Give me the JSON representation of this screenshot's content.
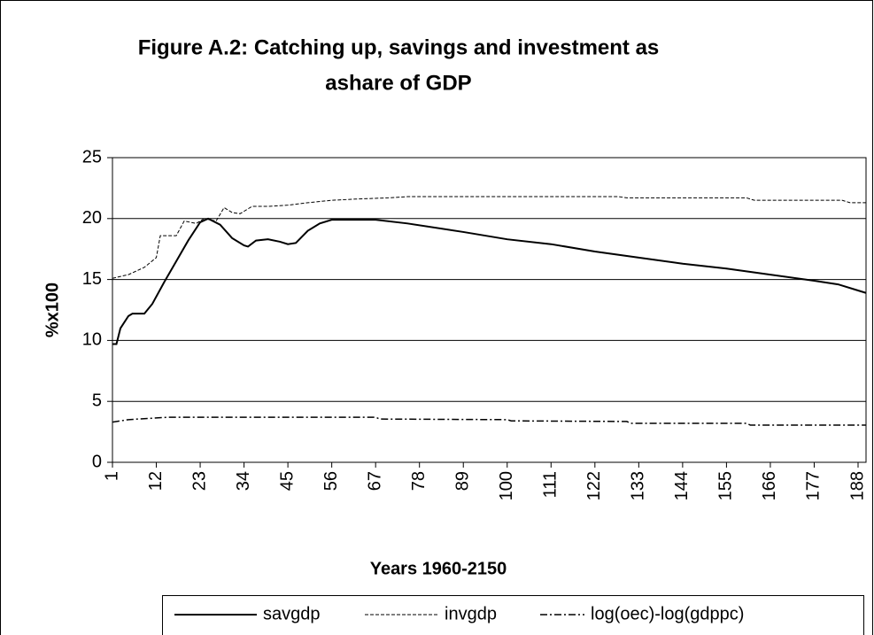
{
  "chart_data": {
    "type": "line",
    "title": "Figure A.2: Catching up, savings and investment as ashare of GDP",
    "title_lines": [
      "Figure A.2: Catching up, savings and investment as",
      "ashare of GDP"
    ],
    "xlabel": "Years 1960-2150",
    "ylabel": "%x100",
    "xlim": [
      1,
      190
    ],
    "xticks": [
      1,
      12,
      23,
      34,
      45,
      56,
      67,
      78,
      89,
      100,
      111,
      122,
      133,
      144,
      155,
      166,
      177,
      188
    ],
    "ylim": [
      0,
      25
    ],
    "yticks": [
      0,
      5,
      10,
      15,
      20,
      25
    ],
    "grid": true,
    "legend": "bottom",
    "series": [
      {
        "name": "savgdp",
        "color": "#000000",
        "style": "solid",
        "x": [
          1,
          2,
          3,
          5,
          6,
          9,
          11,
          14,
          17,
          20,
          23,
          25,
          28,
          31,
          34,
          35,
          37,
          40,
          43,
          45,
          47,
          50,
          53,
          56,
          60,
          67,
          75,
          89,
          100,
          111,
          122,
          133,
          144,
          155,
          166,
          177,
          183,
          188,
          190
        ],
        "values": [
          9.7,
          9.7,
          11,
          12,
          12.2,
          12.2,
          13,
          14.8,
          16.5,
          18.2,
          19.7,
          20,
          19.5,
          18.4,
          17.8,
          17.7,
          18.2,
          18.3,
          18.1,
          17.9,
          18,
          19,
          19.6,
          19.9,
          19.9,
          19.9,
          19.6,
          18.9,
          18.3,
          17.9,
          17.3,
          16.8,
          16.3,
          15.9,
          15.4,
          14.9,
          14.6,
          14.1,
          13.9
        ]
      },
      {
        "name": "invgdp",
        "color": "#000000",
        "style": "dashed",
        "x": [
          1,
          5,
          9,
          12,
          13,
          17,
          19,
          22,
          24,
          27,
          29,
          31,
          33,
          36,
          40,
          45,
          50,
          56,
          62,
          70,
          75,
          100,
          128,
          130,
          160,
          162,
          184,
          186,
          190
        ],
        "values": [
          15.1,
          15.4,
          16,
          16.8,
          18.6,
          18.6,
          19.8,
          19.6,
          20,
          19.8,
          20.9,
          20.5,
          20.4,
          21,
          21,
          21.1,
          21.3,
          21.5,
          21.6,
          21.7,
          21.8,
          21.8,
          21.8,
          21.7,
          21.7,
          21.5,
          21.5,
          21.3,
          21.3
        ]
      },
      {
        "name": "log(oec)-log(gdppc)",
        "color": "#000000",
        "style": "dashdot",
        "x": [
          1,
          5,
          10,
          15,
          67,
          68,
          100,
          101,
          130,
          131,
          160,
          161,
          190
        ],
        "values": [
          3.3,
          3.5,
          3.6,
          3.7,
          3.7,
          3.55,
          3.5,
          3.4,
          3.35,
          3.2,
          3.2,
          3.05,
          3.05
        ]
      }
    ]
  }
}
